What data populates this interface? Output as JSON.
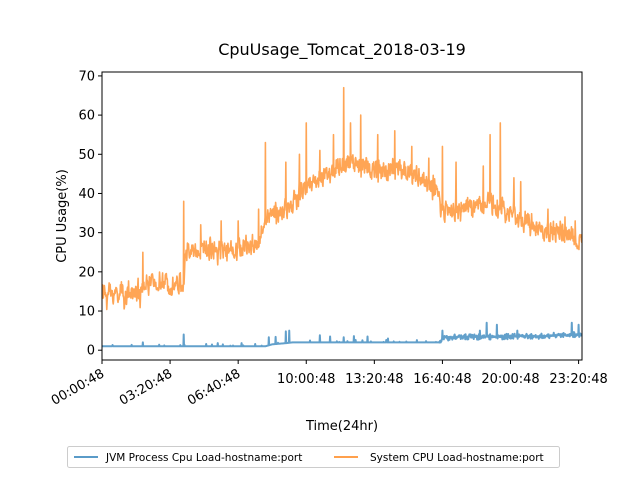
{
  "chart_data": {
    "type": "line",
    "title": "CpuUsage_Tomcat_2018-03-19",
    "xlabel": "Time(24hr)",
    "ylabel": "CPU Usage(%)",
    "xlim": [
      0,
      84600
    ],
    "ylim": [
      -2.5,
      71
    ],
    "x_ticks": [
      {
        "label": "00:00:48",
        "value": 0
      },
      {
        "label": "03:20:48",
        "value": 12000
      },
      {
        "label": "06:40:48",
        "value": 24000
      },
      {
        "label": "10:00:48",
        "value": 36000
      },
      {
        "label": "13:20:48",
        "value": 48000
      },
      {
        "label": "16:40:48",
        "value": 60000
      },
      {
        "label": "20:00:48",
        "value": 72000
      },
      {
        "label": "23:20:48",
        "value": 84000
      }
    ],
    "y_ticks": [
      0,
      10,
      20,
      30,
      40,
      50,
      60,
      70
    ],
    "grid": false,
    "legend_position": "bottom-center",
    "series": [
      {
        "name": "JVM Process Cpu Load-hostname:port",
        "color": "#5a9bc8",
        "profile": [
          [
            0,
            1.0
          ],
          [
            6000,
            1.0
          ],
          [
            7200,
            1.0
          ],
          [
            14400,
            1.0
          ],
          [
            20400,
            1.0
          ],
          [
            25200,
            1.0
          ],
          [
            28800,
            1.0
          ],
          [
            30000,
            1.5
          ],
          [
            32400,
            1.8
          ],
          [
            33600,
            2.0
          ],
          [
            36000,
            2.0
          ],
          [
            42000,
            2.0
          ],
          [
            48000,
            2.0
          ],
          [
            54000,
            2.0
          ],
          [
            59400,
            2.0
          ],
          [
            60000,
            3.0
          ],
          [
            62400,
            3.4
          ],
          [
            66000,
            3.4
          ],
          [
            70800,
            3.4
          ],
          [
            72000,
            3.6
          ],
          [
            76800,
            3.6
          ],
          [
            82800,
            4.0
          ],
          [
            84600,
            4.0
          ]
        ],
        "noise": 0.5,
        "spikes": [
          [
            7200,
            2.0
          ],
          [
            14400,
            4.0
          ],
          [
            20400,
            1.8
          ],
          [
            24600,
            1.8
          ],
          [
            29400,
            3.3
          ],
          [
            30600,
            3.4
          ],
          [
            32400,
            4.8
          ],
          [
            33000,
            5.0
          ],
          [
            38400,
            3.8
          ],
          [
            40200,
            3.5
          ],
          [
            42600,
            3.3
          ],
          [
            44400,
            3.6
          ],
          [
            46800,
            3.5
          ],
          [
            50400,
            3.0
          ],
          [
            60000,
            5.0
          ],
          [
            66600,
            5.0
          ],
          [
            67800,
            7.0
          ],
          [
            69600,
            6.5
          ],
          [
            73200,
            5.0
          ],
          [
            82800,
            7.0
          ],
          [
            84000,
            6.5
          ]
        ]
      },
      {
        "name": "System CPU Load-hostname:port",
        "color": "#ffa04c",
        "profile": [
          [
            0,
            14.5
          ],
          [
            7200,
            14.5
          ],
          [
            7500,
            17.0
          ],
          [
            14400,
            17.0
          ],
          [
            14800,
            25.0
          ],
          [
            19200,
            26.0
          ],
          [
            24000,
            26.0
          ],
          [
            27600,
            27.0
          ],
          [
            28800,
            34.0
          ],
          [
            33000,
            36.0
          ],
          [
            36000,
            42.0
          ],
          [
            39600,
            45.0
          ],
          [
            42600,
            47.0
          ],
          [
            45000,
            48.0
          ],
          [
            48000,
            46.0
          ],
          [
            51600,
            46.0
          ],
          [
            55200,
            45.0
          ],
          [
            58800,
            41.0
          ],
          [
            60000,
            35.0
          ],
          [
            62400,
            36.0
          ],
          [
            66000,
            37.0
          ],
          [
            69000,
            38.0
          ],
          [
            72000,
            35.0
          ],
          [
            76800,
            31.0
          ],
          [
            80400,
            30.0
          ],
          [
            84600,
            28.0
          ]
        ],
        "noise": 3.2,
        "spikes": [
          [
            7200,
            25.0
          ],
          [
            14400,
            38.0
          ],
          [
            17400,
            32.0
          ],
          [
            21000,
            33.0
          ],
          [
            24000,
            33.0
          ],
          [
            27600,
            36.0
          ],
          [
            28800,
            53.0
          ],
          [
            32400,
            48.0
          ],
          [
            34800,
            50.0
          ],
          [
            36000,
            58.0
          ],
          [
            38400,
            51.0
          ],
          [
            40800,
            55.0
          ],
          [
            42600,
            67.0
          ],
          [
            43800,
            58.0
          ],
          [
            45600,
            60.0
          ],
          [
            48600,
            55.0
          ],
          [
            51600,
            56.0
          ],
          [
            54600,
            52.0
          ],
          [
            57600,
            49.0
          ],
          [
            60000,
            52.0
          ],
          [
            62400,
            48.0
          ],
          [
            67200,
            47.0
          ],
          [
            68400,
            55.0
          ],
          [
            70200,
            58.0
          ],
          [
            72600,
            44.0
          ],
          [
            73800,
            43.0
          ],
          [
            78600,
            36.0
          ],
          [
            81600,
            34.0
          ],
          [
            83400,
            33.0
          ]
        ]
      }
    ]
  }
}
